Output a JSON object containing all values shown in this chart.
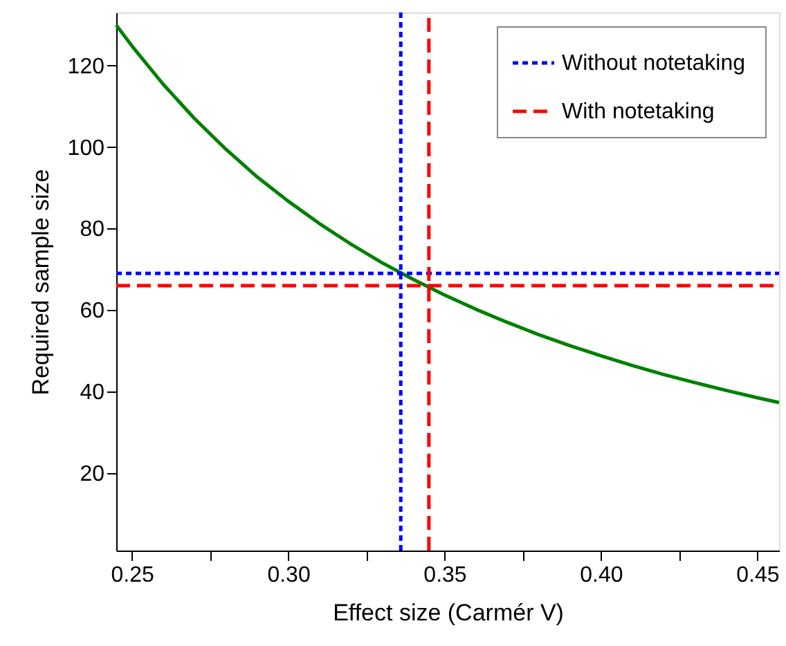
{
  "chart_data": {
    "type": "line",
    "xlabel": "Effect size (Carmér V)",
    "ylabel": "Required sample size",
    "xlim": [
      0.245,
      0.457
    ],
    "ylim": [
      1,
      133
    ],
    "xticks": [
      0.25,
      {
        "value": 0.275,
        "label": null
      },
      "0.30",
      {
        "value": 0.325,
        "label": null
      },
      0.35,
      {
        "value": 0.375,
        "label": null
      },
      "0.40",
      {
        "value": 0.425,
        "label": null
      },
      0.45
    ],
    "yticks": [
      20,
      40,
      60,
      80,
      100,
      120
    ],
    "grid": false,
    "legend": "top right",
    "marker": "none",
    "series": [
      {
        "color": "#008000",
        "line_style": "solid",
        "x": [
          0.245,
          0.25,
          0.26,
          0.27,
          0.28,
          0.29,
          0.3,
          0.31,
          0.32,
          0.33,
          0.34,
          0.35,
          0.36,
          0.37,
          0.38,
          0.39,
          0.4,
          0.41,
          0.42,
          0.43,
          0.44,
          0.45,
          0.457
        ],
        "values": [
          129.9,
          124.8,
          115.4,
          107.0,
          99.5,
          92.7,
          86.7,
          81.2,
          76.2,
          71.6,
          67.5,
          63.7,
          60.2,
          57.0,
          54.0,
          51.3,
          48.8,
          46.4,
          44.2,
          42.2,
          40.3,
          38.5,
          37.3
        ]
      },
      {
        "name": "Without  notetaking",
        "color": "#0000ff",
        "line_style": "dotted",
        "x": [
          0.336,
          0.336,
          null,
          0.245,
          0.457
        ],
        "values": [
          1,
          133,
          null,
          69,
          69
        ]
      },
      {
        "name": "With notetaking",
        "color": "#ff0000",
        "line_style": "dashed",
        "x": [
          0.345,
          0.345,
          null,
          0.245,
          0.457
        ],
        "values": [
          1,
          133,
          null,
          66,
          66
        ]
      }
    ]
  }
}
